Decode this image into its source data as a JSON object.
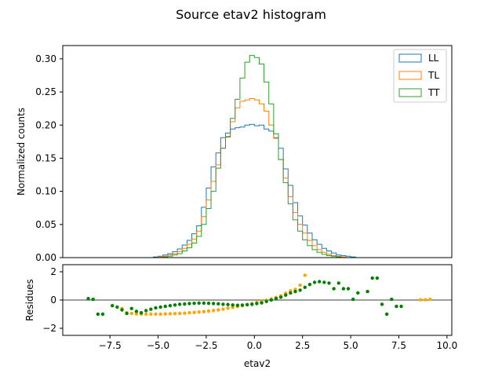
{
  "chart_data": [
    {
      "type": "step-histogram",
      "title": "Source etav2 histogram",
      "xlabel": "",
      "ylabel": "Normalized counts",
      "xlim": [
        -9.95,
        10.25
      ],
      "ylim": [
        0,
        0.32
      ],
      "yticks": [
        0.0,
        0.05,
        0.1,
        0.15,
        0.2,
        0.25,
        0.3
      ],
      "ytick_labels": [
        "0.00",
        "0.05",
        "0.10",
        "0.15",
        "0.20",
        "0.25",
        "0.30"
      ],
      "grid": false,
      "legend": {
        "placement": "top-right"
      },
      "bin_edges": [
        -8.75,
        -8.5,
        -8.25,
        -8.0,
        -7.75,
        -7.5,
        -7.25,
        -7.0,
        -6.75,
        -6.5,
        -6.25,
        -6.0,
        -5.75,
        -5.5,
        -5.25,
        -5.0,
        -4.75,
        -4.5,
        -4.25,
        -4.0,
        -3.75,
        -3.5,
        -3.25,
        -3.0,
        -2.75,
        -2.5,
        -2.25,
        -2.0,
        -1.75,
        -1.5,
        -1.25,
        -1.0,
        -0.75,
        -0.5,
        -0.25,
        0.0,
        0.25,
        0.5,
        0.75,
        1.0,
        1.25,
        1.5,
        1.75,
        2.0,
        2.25,
        2.5,
        2.75,
        3.0,
        3.25,
        3.5,
        3.75,
        4.0,
        4.25,
        4.5,
        4.75,
        5.0,
        5.25,
        5.5,
        5.75,
        6.0,
        6.25,
        6.5,
        6.75,
        7.0,
        7.25,
        7.5,
        7.75,
        8.0,
        8.25,
        8.5,
        8.75,
        9.0,
        9.25
      ],
      "series": [
        {
          "name": "LL",
          "color": "#1f77b4",
          "values": [
            0,
            0,
            0,
            0,
            0,
            0,
            0,
            0,
            0,
            0,
            0,
            0,
            0,
            0,
            0.001,
            0.002,
            0.004,
            0.006,
            0.009,
            0.013,
            0.019,
            0.026,
            0.036,
            0.048,
            0.076,
            0.105,
            0.137,
            0.158,
            0.181,
            0.188,
            0.194,
            0.196,
            0.197,
            0.2,
            0.201,
            0.199,
            0.2,
            0.194,
            0.191,
            0.181,
            0.165,
            0.134,
            0.109,
            0.083,
            0.063,
            0.049,
            0.037,
            0.027,
            0.02,
            0.014,
            0.01,
            0.007,
            0.004,
            0.003,
            0.002,
            0.001,
            0,
            0,
            0,
            0,
            0,
            0,
            0,
            0,
            0,
            0,
            0,
            0,
            0,
            0,
            0,
            0
          ]
        },
        {
          "name": "TL",
          "color": "#ff7f0e",
          "values": [
            0,
            0,
            0,
            0,
            0,
            0,
            0,
            0,
            0,
            0,
            0,
            0,
            0,
            0,
            0,
            0.001,
            0.002,
            0.004,
            0.006,
            0.009,
            0.014,
            0.02,
            0.028,
            0.04,
            0.062,
            0.087,
            0.115,
            0.14,
            0.165,
            0.183,
            0.205,
            0.226,
            0.236,
            0.238,
            0.24,
            0.238,
            0.232,
            0.221,
            0.2,
            0.18,
            0.148,
            0.12,
            0.092,
            0.068,
            0.05,
            0.037,
            0.026,
            0.018,
            0.012,
            0.008,
            0.005,
            0.003,
            0.002,
            0.001,
            0,
            0,
            0,
            0,
            0,
            0,
            0,
            0,
            0,
            0,
            0,
            0,
            0,
            0,
            0,
            0,
            0,
            0
          ]
        },
        {
          "name": "TT",
          "color": "#2ca02c",
          "values": [
            0,
            0,
            0,
            0,
            0,
            0,
            0,
            0,
            0,
            0,
            0,
            0,
            0,
            0,
            0,
            0,
            0.001,
            0.002,
            0.004,
            0.006,
            0.01,
            0.015,
            0.022,
            0.032,
            0.05,
            0.074,
            0.1,
            0.135,
            0.165,
            0.182,
            0.21,
            0.239,
            0.271,
            0.295,
            0.305,
            0.302,
            0.292,
            0.265,
            0.232,
            0.187,
            0.148,
            0.113,
            0.081,
            0.057,
            0.04,
            0.027,
            0.018,
            0.012,
            0.008,
            0.005,
            0.003,
            0.002,
            0.001,
            0,
            0,
            0,
            0,
            0,
            0,
            0,
            0,
            0,
            0,
            0,
            0,
            0,
            0,
            0,
            0,
            0,
            0,
            0
          ]
        }
      ]
    },
    {
      "type": "scatter",
      "title": "",
      "xlabel": "etav2",
      "ylabel": "Residues",
      "xlim": [
        -9.95,
        10.25
      ],
      "ylim": [
        -2.5,
        2.5
      ],
      "xticks": [
        -7.5,
        -5.0,
        -2.5,
        0.0,
        2.5,
        5.0,
        7.5,
        10.0
      ],
      "xtick_labels": [
        "−7.5",
        "−5.0",
        "−2.5",
        "0.0",
        "2.5",
        "5.0",
        "7.5",
        "10.0"
      ],
      "yticks": [
        -2,
        0,
        2
      ],
      "ytick_labels": [
        "−2",
        "0",
        "2"
      ],
      "reference_line": {
        "y": 0,
        "color": "#7f7f7f"
      },
      "grid": false,
      "series": [
        {
          "color": "#ffa500",
          "x": [
            -6.875,
            -6.625,
            -6.375,
            -6.125,
            -5.875,
            -5.625,
            -5.375,
            -5.125,
            -4.875,
            -4.625,
            -4.375,
            -4.125,
            -3.875,
            -3.625,
            -3.375,
            -3.125,
            -2.875,
            -2.625,
            -2.375,
            -2.125,
            -1.875,
            -1.625,
            -1.375,
            -1.125,
            -0.875,
            -0.625,
            -0.375,
            -0.125,
            0.125,
            0.375,
            0.625,
            0.875,
            1.125,
            1.375,
            1.625,
            1.875,
            2.125,
            2.375,
            2.625,
            8.625,
            8.875,
            9.125
          ],
          "y": [
            -0.6,
            -0.9,
            -0.95,
            -0.98,
            -1.0,
            -1.0,
            -1.0,
            -1.0,
            -1.0,
            -0.98,
            -0.97,
            -0.96,
            -0.95,
            -0.93,
            -0.9,
            -0.88,
            -0.85,
            -0.82,
            -0.78,
            -0.74,
            -0.7,
            -0.64,
            -0.58,
            -0.52,
            -0.46,
            -0.4,
            -0.33,
            -0.25,
            -0.18,
            -0.1,
            -0.02,
            0.08,
            0.18,
            0.3,
            0.48,
            0.65,
            0.75,
            1.05,
            1.75,
            0.02,
            0.02,
            0.05
          ]
        },
        {
          "color": "#008000",
          "x": [
            -8.625,
            -8.375,
            -8.125,
            -7.875,
            -7.375,
            -7.125,
            -6.875,
            -6.625,
            -6.375,
            -6.125,
            -5.875,
            -5.625,
            -5.375,
            -5.125,
            -4.875,
            -4.625,
            -4.375,
            -4.125,
            -3.875,
            -3.625,
            -3.375,
            -3.125,
            -2.875,
            -2.625,
            -2.375,
            -2.125,
            -1.875,
            -1.625,
            -1.375,
            -1.125,
            -0.875,
            -0.625,
            -0.375,
            -0.125,
            0.125,
            0.375,
            0.625,
            0.875,
            1.125,
            1.375,
            1.625,
            1.875,
            2.125,
            2.375,
            2.625,
            2.875,
            3.125,
            3.375,
            3.625,
            3.875,
            4.125,
            4.375,
            4.625,
            4.875,
            5.125,
            5.375,
            5.875,
            6.125,
            6.375,
            6.625,
            6.875,
            7.125,
            7.375,
            7.625
          ],
          "y": [
            0.1,
            0.05,
            -1.0,
            -1.0,
            -0.4,
            -0.5,
            -0.7,
            -0.95,
            -0.6,
            -0.8,
            -0.9,
            -0.75,
            -0.65,
            -0.55,
            -0.5,
            -0.45,
            -0.4,
            -0.35,
            -0.3,
            -0.28,
            -0.25,
            -0.23,
            -0.22,
            -0.22,
            -0.23,
            -0.25,
            -0.27,
            -0.3,
            -0.32,
            -0.35,
            -0.37,
            -0.36,
            -0.33,
            -0.3,
            -0.25,
            -0.2,
            -0.1,
            0.0,
            0.1,
            0.2,
            0.35,
            0.5,
            0.6,
            0.7,
            0.9,
            1.1,
            1.25,
            1.3,
            1.25,
            1.2,
            0.8,
            1.2,
            0.8,
            0.8,
            0.05,
            0.5,
            0.6,
            1.55,
            1.55,
            -0.3,
            -1.0,
            0.05,
            -0.45,
            -0.45
          ]
        }
      ]
    }
  ]
}
